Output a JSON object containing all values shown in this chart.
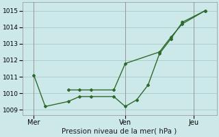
{
  "title": "Pression niveau de la mer( hPa )",
  "bg_color": "#cce8e8",
  "grid_color": "#aacece",
  "line_color": "#2d6a2d",
  "ylim": [
    1008.7,
    1015.5
  ],
  "yticks": [
    1009,
    1010,
    1011,
    1012,
    1013,
    1014,
    1015
  ],
  "xtick_labels": [
    "Mer",
    "Ven",
    "Jeu"
  ],
  "xtick_positions": [
    2,
    10,
    16
  ],
  "vline_positions": [
    2,
    10,
    16
  ],
  "series1_x": [
    2,
    3,
    5,
    6,
    7,
    9,
    10,
    11,
    12,
    13,
    14,
    15,
    17
  ],
  "series1_y": [
    1011.1,
    1009.2,
    1009.5,
    1009.8,
    1009.8,
    1009.8,
    1009.2,
    1009.6,
    1010.5,
    1012.4,
    1013.3,
    1014.3,
    1015.0
  ],
  "series2_x": [
    5,
    6,
    7,
    9,
    10,
    13,
    14,
    15,
    17
  ],
  "series2_y": [
    1010.2,
    1010.2,
    1010.2,
    1010.2,
    1011.8,
    1012.5,
    1013.4,
    1014.2,
    1015.0
  ],
  "xlim": [
    1,
    18
  ]
}
